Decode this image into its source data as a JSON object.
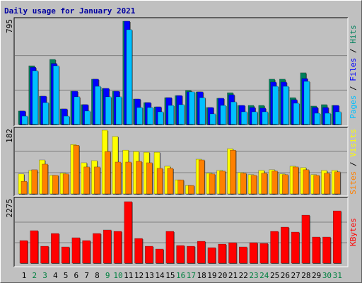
{
  "title": "Daily usage for January 2021",
  "chart_data": [
    {
      "type": "bar",
      "ylim": [
        0,
        795
      ],
      "yticks": [
        795
      ],
      "series": [
        {
          "name": "Hits",
          "color": "#00805c",
          "values": [
            104,
            452,
            218,
            501,
            120,
            256,
            153,
            349,
            278,
            256,
            795,
            196,
            169,
            136,
            207,
            223,
            262,
            251,
            131,
            202,
            245,
            147,
            147,
            147,
            349,
            349,
            207,
            398,
            142,
            153,
            147
          ]
        },
        {
          "name": "Files",
          "color": "#0000ff",
          "values": [
            104,
            440,
            218,
            470,
            120,
            256,
            153,
            349,
            278,
            256,
            795,
            196,
            169,
            136,
            207,
            223,
            251,
            251,
            131,
            202,
            229,
            147,
            131,
            126,
            327,
            327,
            191,
            354,
            131,
            131,
            147
          ]
        },
        {
          "name": "Pages",
          "color": "#00c0ff",
          "values": [
            65,
            414,
            169,
            452,
            65,
            213,
            104,
            294,
            213,
            213,
            730,
            131,
            131,
            98,
            147,
            153,
            251,
            207,
            82,
            147,
            174,
            98,
            98,
            98,
            294,
            294,
            164,
            332,
            87,
            87,
            98
          ]
        }
      ]
    },
    {
      "type": "bar",
      "ylim": [
        0,
        182
      ],
      "yticks": [
        182
      ],
      "series": [
        {
          "name": "Visits",
          "color": "#ffff00",
          "values": [
            57,
            67,
            97,
            53,
            59,
            141,
            89,
            95,
            182,
            164,
            125,
            121,
            119,
            119,
            79,
            40,
            24,
            99,
            59,
            67,
            129,
            61,
            55,
            67,
            69,
            57,
            79,
            75,
            55,
            67,
            67
          ]
        },
        {
          "name": "Sites",
          "color": "#ff8000",
          "values": [
            36,
            69,
            85,
            53,
            57,
            139,
            77,
            77,
            121,
            91,
            91,
            93,
            89,
            73,
            73,
            40,
            24,
            97,
            57,
            65,
            125,
            59,
            53,
            59,
            65,
            55,
            77,
            69,
            53,
            59,
            63
          ]
        }
      ]
    },
    {
      "type": "bar",
      "ylim": [
        0,
        2275
      ],
      "yticks": [
        2275
      ],
      "categories": [
        "1",
        "2",
        "3",
        "4",
        "5",
        "6",
        "7",
        "8",
        "9",
        "10",
        "11",
        "12",
        "13",
        "14",
        "15",
        "16",
        "17",
        "18",
        "19",
        "20",
        "21",
        "22",
        "23",
        "24",
        "25",
        "26",
        "27",
        "28",
        "29",
        "30",
        "31"
      ],
      "category_colors": [
        "#000000",
        "#008040",
        "#008040",
        "#000000",
        "#000000",
        "#000000",
        "#000000",
        "#000000",
        "#008040",
        "#008040",
        "#000000",
        "#000000",
        "#000000",
        "#000000",
        "#000000",
        "#008040",
        "#008040",
        "#000000",
        "#000000",
        "#000000",
        "#000000",
        "#000000",
        "#008040",
        "#008040",
        "#000000",
        "#000000",
        "#000000",
        "#000000",
        "#000000",
        "#008040",
        "#008040"
      ],
      "series": [
        {
          "name": "KBytes",
          "color": "#ff0000",
          "values": [
            836,
            1203,
            627,
            1098,
            601,
            941,
            836,
            1098,
            1229,
            1177,
            2275,
            914,
            627,
            523,
            1177,
            653,
            627,
            810,
            575,
            705,
            757,
            601,
            757,
            731,
            1177,
            1333,
            1150,
            1776,
            967,
            967,
            1933
          ]
        }
      ]
    }
  ]
}
